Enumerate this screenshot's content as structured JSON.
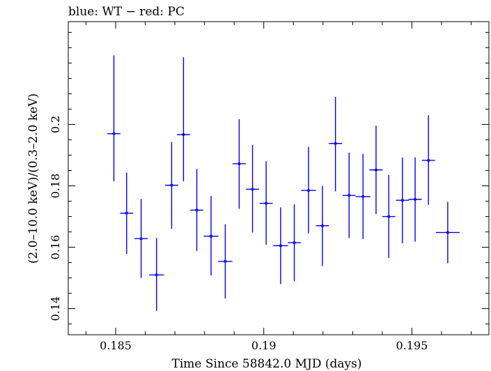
{
  "chart_data": {
    "type": "scatter",
    "title": "blue: WT − red: PC",
    "xlabel": "Time Since 58842.0 MJD (days)",
    "ylabel": "(2.0–10.0 keV)/(0.3–2.0 keV)",
    "xlim": [
      0.1834,
      0.1976
    ],
    "ylim": [
      0.1315,
      0.2335
    ],
    "xticks": [
      0.185,
      0.19,
      0.195
    ],
    "xtick_labels": [
      "0.185",
      "0.19",
      "0.195"
    ],
    "yticks": [
      0.14,
      0.16,
      0.18,
      0.2
    ],
    "ytick_labels": [
      "0.14",
      "0.16",
      "0.18",
      "0.2"
    ],
    "grid": false,
    "colors": {
      "WT": "#0000ee",
      "axis": "#000000"
    },
    "series": [
      {
        "name": "WT",
        "color": "#0000ee",
        "points": [
          {
            "x": 0.18494,
            "xerr": 0.00022,
            "y": 0.197,
            "ylo": 0.1815,
            "yhi": 0.2225
          },
          {
            "x": 0.18537,
            "xerr": 0.00022,
            "y": 0.1711,
            "ylo": 0.1578,
            "yhi": 0.1843
          },
          {
            "x": 0.18586,
            "xerr": 0.00022,
            "y": 0.1628,
            "ylo": 0.15,
            "yhi": 0.1757
          },
          {
            "x": 0.18638,
            "xerr": 0.00025,
            "y": 0.151,
            "ylo": 0.1393,
            "yhi": 0.163
          },
          {
            "x": 0.18689,
            "xerr": 0.00022,
            "y": 0.1802,
            "ylo": 0.166,
            "yhi": 0.1943
          },
          {
            "x": 0.18729,
            "xerr": 0.00022,
            "y": 0.1967,
            "ylo": 0.1815,
            "yhi": 0.2219
          },
          {
            "x": 0.18774,
            "xerr": 0.00022,
            "y": 0.1721,
            "ylo": 0.1588,
            "yhi": 0.1855
          },
          {
            "x": 0.18822,
            "xerr": 0.00025,
            "y": 0.1636,
            "ylo": 0.1508,
            "yhi": 0.1767
          },
          {
            "x": 0.1887,
            "xerr": 0.00024,
            "y": 0.1554,
            "ylo": 0.1433,
            "yhi": 0.1675
          },
          {
            "x": 0.18917,
            "xerr": 0.00022,
            "y": 0.1872,
            "ylo": 0.1725,
            "yhi": 0.2017
          },
          {
            "x": 0.18962,
            "xerr": 0.00022,
            "y": 0.1789,
            "ylo": 0.1648,
            "yhi": 0.1933
          },
          {
            "x": 0.19008,
            "xerr": 0.00022,
            "y": 0.1743,
            "ylo": 0.1608,
            "yhi": 0.188
          },
          {
            "x": 0.19057,
            "xerr": 0.00025,
            "y": 0.1605,
            "ylo": 0.148,
            "yhi": 0.173
          },
          {
            "x": 0.19103,
            "xerr": 0.00022,
            "y": 0.1615,
            "ylo": 0.1489,
            "yhi": 0.174
          },
          {
            "x": 0.19151,
            "xerr": 0.00025,
            "y": 0.1785,
            "ylo": 0.1645,
            "yhi": 0.1927
          },
          {
            "x": 0.19198,
            "xerr": 0.00022,
            "y": 0.167,
            "ylo": 0.1539,
            "yhi": 0.18
          },
          {
            "x": 0.19242,
            "xerr": 0.00022,
            "y": 0.1938,
            "ylo": 0.1782,
            "yhi": 0.209
          },
          {
            "x": 0.19288,
            "xerr": 0.00022,
            "y": 0.1769,
            "ylo": 0.163,
            "yhi": 0.1908
          },
          {
            "x": 0.19335,
            "xerr": 0.00025,
            "y": 0.1765,
            "ylo": 0.1627,
            "yhi": 0.1904
          },
          {
            "x": 0.19379,
            "xerr": 0.00022,
            "y": 0.1852,
            "ylo": 0.1708,
            "yhi": 0.1996
          },
          {
            "x": 0.19422,
            "xerr": 0.00022,
            "y": 0.17,
            "ylo": 0.1565,
            "yhi": 0.1835
          },
          {
            "x": 0.19468,
            "xerr": 0.00022,
            "y": 0.1753,
            "ylo": 0.1613,
            "yhi": 0.1892
          },
          {
            "x": 0.19511,
            "xerr": 0.00022,
            "y": 0.1756,
            "ylo": 0.1618,
            "yhi": 0.1893
          },
          {
            "x": 0.19556,
            "xerr": 0.00022,
            "y": 0.1883,
            "ylo": 0.1738,
            "yhi": 0.203
          },
          {
            "x": 0.19621,
            "xerr": 0.0004,
            "y": 0.1648,
            "ylo": 0.1548,
            "yhi": 0.1748
          }
        ]
      }
    ]
  }
}
